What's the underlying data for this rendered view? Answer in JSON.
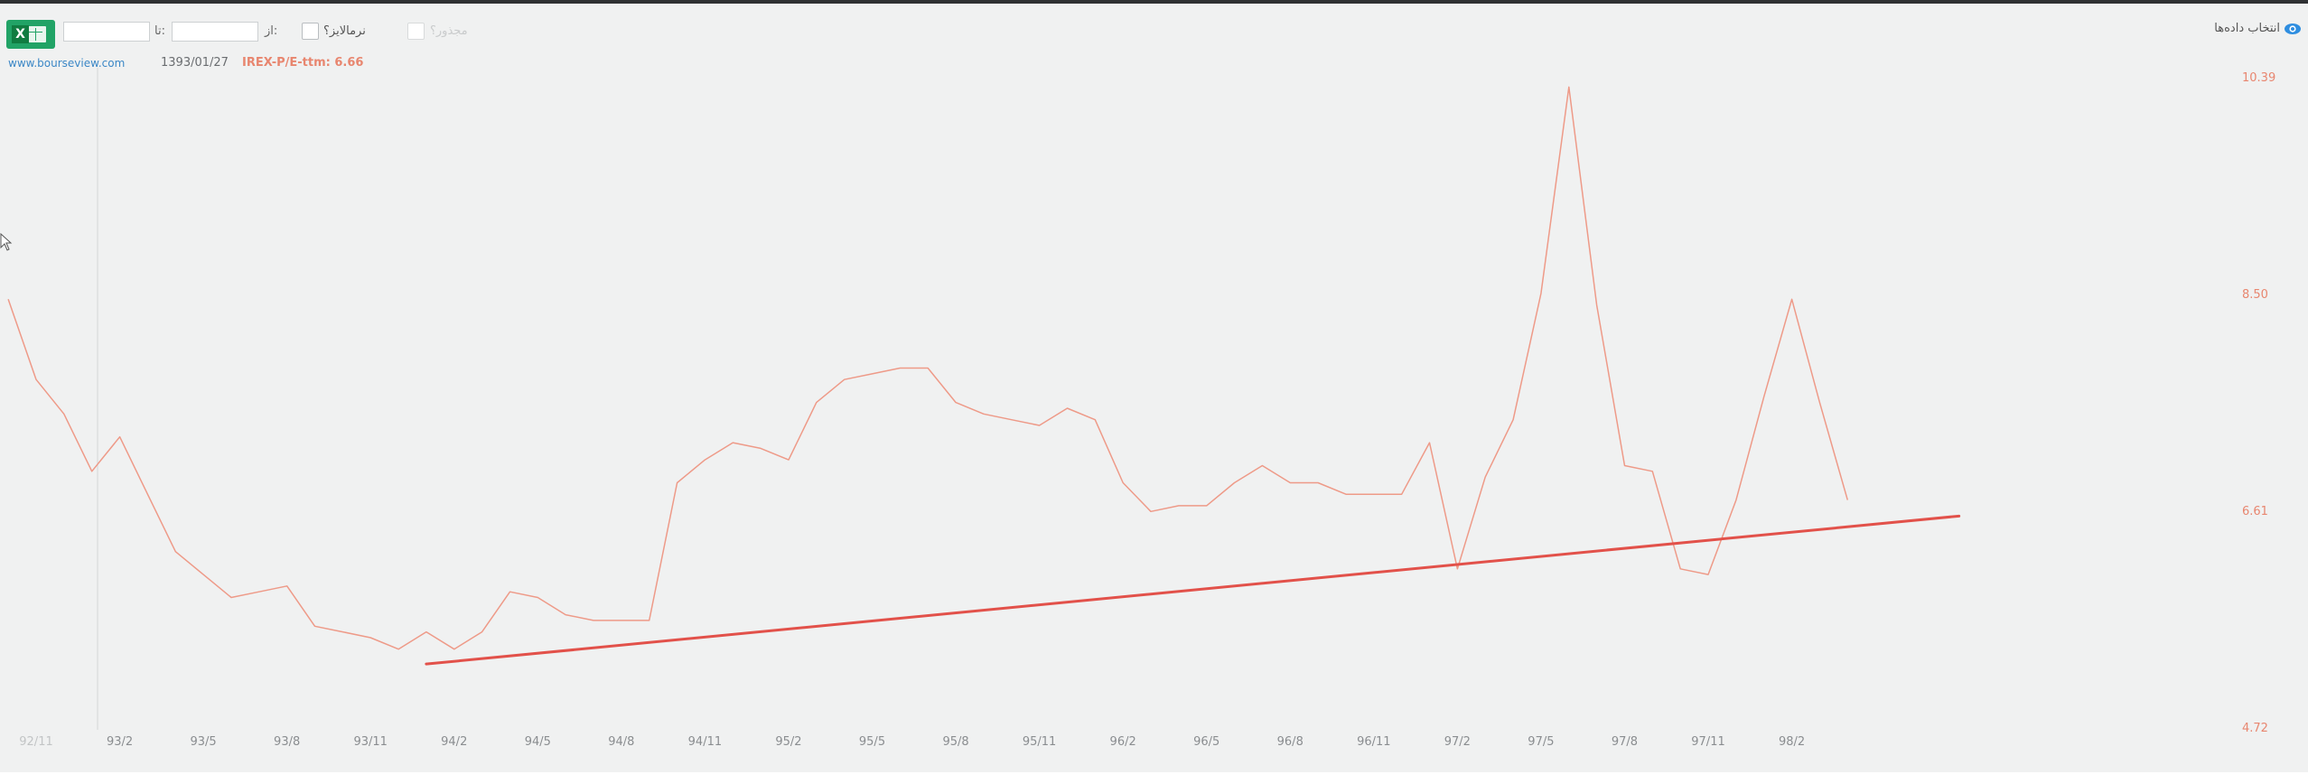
{
  "toolbar": {
    "excel_icon": "excel-export-icon",
    "to_label": "تا:",
    "to_value": "",
    "from_label": "از:",
    "from_value": "",
    "normalize_label": "نرمالایز؟",
    "sqrt_label": "مجذور؟",
    "site_link": "www.bourseview.com",
    "hover_date": "1393/01/27",
    "hover_series_value": "IREX-P/E-ttm: 6.66",
    "select_data_label": "انتخاب داده‌ها",
    "select_data_icon": "eye-icon"
  },
  "colors": {
    "series": "#ee9a88",
    "trendline": "#e2514a",
    "axis_text": "#8a8d90",
    "ytick_text": "#e8866f",
    "excel_green": "#21a366",
    "eye_blue": "#2f8ee0"
  },
  "chart_data": {
    "type": "line",
    "title": "",
    "xlabel": "",
    "ylabel": "",
    "x_ticks": [
      "92/11",
      "93/2",
      "93/5",
      "93/8",
      "93/11",
      "94/2",
      "94/5",
      "94/8",
      "94/11",
      "95/2",
      "95/5",
      "95/8",
      "95/11",
      "96/2",
      "96/5",
      "96/8",
      "96/11",
      "97/2",
      "97/5",
      "97/8",
      "97/11",
      "98/2"
    ],
    "y_ticks": [
      10.39,
      8.5,
      6.61,
      4.72
    ],
    "ylim": [
      4.72,
      10.39
    ],
    "y_axis_side": "right",
    "grid": false,
    "series": [
      {
        "name": "IREX-P/E-ttm",
        "x": [
          "92/10",
          "92/11",
          "92/12",
          "93/1",
          "93/2",
          "93/3",
          "93/4",
          "93/5",
          "93/6",
          "93/7",
          "93/8",
          "93/9",
          "93/10",
          "93/11",
          "93/12",
          "94/1",
          "94/2",
          "94/3",
          "94/4",
          "94/5",
          "94/6",
          "94/7",
          "94/8",
          "94/9",
          "94/10",
          "94/11",
          "94/12",
          "95/1",
          "95/2",
          "95/3",
          "95/4",
          "95/5",
          "95/6",
          "95/7",
          "95/8",
          "95/9",
          "95/10",
          "95/11",
          "95/12",
          "96/1",
          "96/2",
          "96/3",
          "96/4",
          "96/5",
          "96/6",
          "96/7",
          "96/8",
          "96/9",
          "96/10",
          "96/11",
          "96/12",
          "97/1",
          "97/2",
          "97/3",
          "97/4",
          "97/5",
          "97/6",
          "97/7",
          "97/8",
          "97/9",
          "97/10",
          "97/11",
          "97/12",
          "98/1",
          "98/2",
          "98/3",
          "98/4"
        ],
        "y": [
          8.45,
          7.75,
          7.45,
          6.95,
          7.25,
          6.75,
          6.25,
          6.05,
          5.85,
          5.9,
          5.95,
          5.6,
          5.55,
          5.5,
          5.4,
          5.55,
          5.4,
          5.55,
          5.9,
          5.85,
          5.7,
          5.65,
          5.65,
          5.65,
          6.85,
          7.05,
          7.2,
          7.15,
          7.05,
          7.55,
          7.75,
          7.8,
          7.85,
          7.85,
          7.55,
          7.45,
          7.4,
          7.35,
          7.5,
          7.4,
          6.85,
          6.6,
          6.65,
          6.65,
          6.85,
          7.0,
          6.85,
          6.85,
          6.75,
          6.75,
          6.75,
          7.2,
          6.1,
          6.9,
          7.4,
          8.5,
          10.3,
          8.4,
          7.0,
          6.95,
          6.1,
          6.05,
          6.7,
          7.6,
          8.45,
          7.55,
          6.7
        ]
      }
    ],
    "annotations": [
      {
        "type": "trendline",
        "from": {
          "x": "94/1",
          "y": 5.27
        },
        "to": {
          "x": "98/8",
          "y": 6.56
        }
      }
    ]
  }
}
